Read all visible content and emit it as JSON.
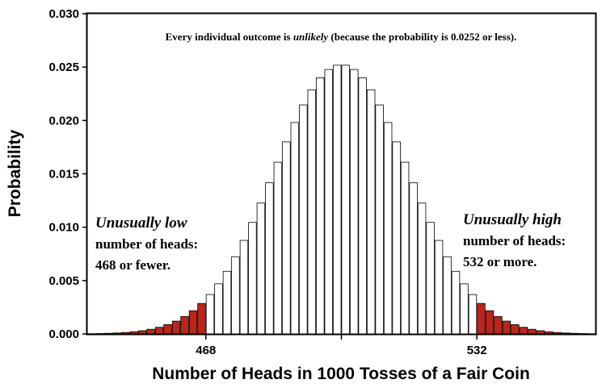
{
  "chart_data": {
    "type": "bar",
    "x_range": [
      440,
      560
    ],
    "ylim": [
      0,
      0.03
    ],
    "yticks": [
      "0.000",
      "0.005",
      "0.010",
      "0.015",
      "0.020",
      "0.025",
      "0.030"
    ],
    "xticks": [
      "468",
      "532"
    ],
    "xlabel": "Number of Heads in 1000 Tosses of a Fair Coin",
    "ylabel": "Probability",
    "distribution": {
      "name": "binomial",
      "n": 1000,
      "p": 0.5,
      "peak_probability": 0.0252
    },
    "low_cutoff": 468,
    "high_cutoff": 532,
    "colors": {
      "tail": "#b8261e",
      "bar_fill": "#ffffff",
      "bar_stroke": "#000000"
    },
    "annotations": {
      "top": {
        "before": "Every individual outcome is ",
        "emph": "unlikely",
        "after": " (because the probability is 0.0252 or less)."
      },
      "low": {
        "title": "Unusually low",
        "line1": "number of heads:",
        "line2": "468 or fewer."
      },
      "high": {
        "title": "Unusually high",
        "line1": "number of heads:",
        "line2": "532 or more."
      }
    }
  }
}
